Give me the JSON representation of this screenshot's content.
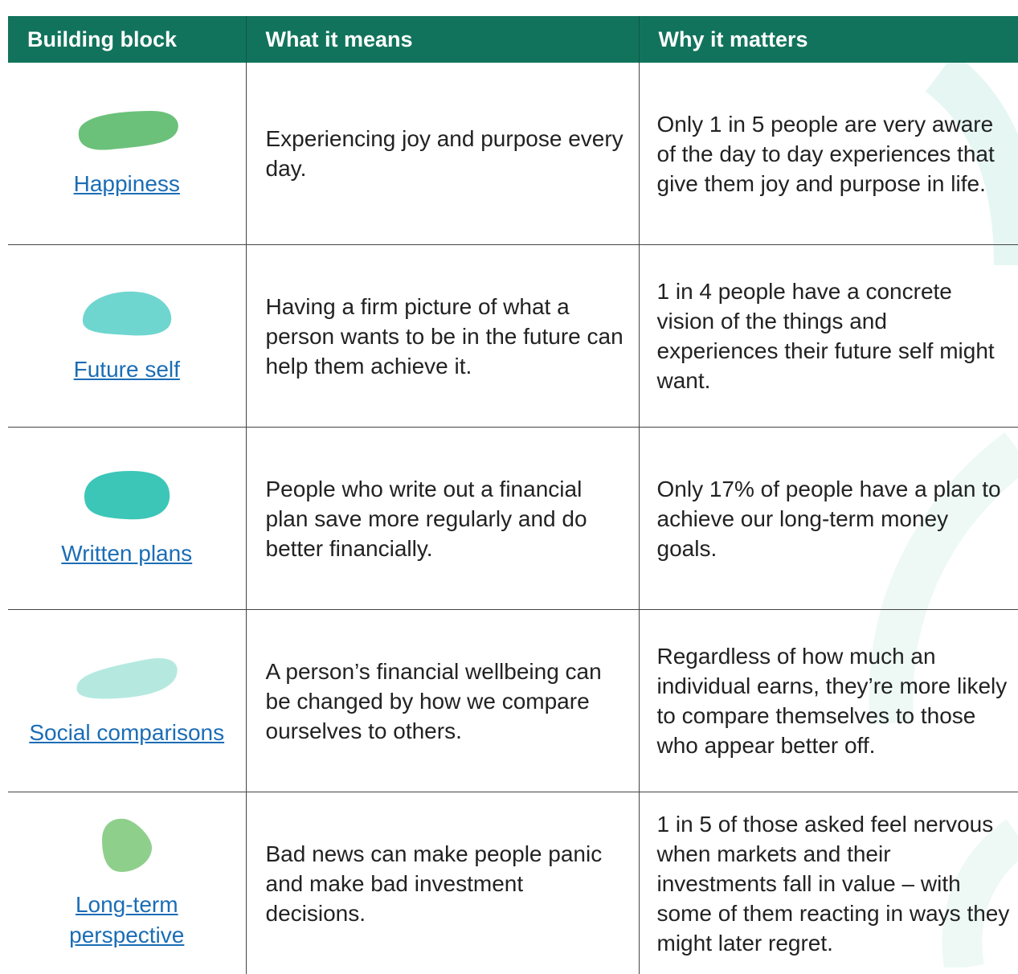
{
  "table": {
    "header": [
      "Building block",
      "What it means",
      "Why it matters"
    ],
    "rows": [
      [
        "Happiness",
        "Experiencing joy and purpose every day.",
        "Only 1 in 5 people are very aware of the day to day experiences that give them joy and purpose in life."
      ],
      [
        "Future self",
        "Having a firm picture of what a person wants to be in the future can help them achieve it.",
        "1 in 4 people have a concrete vision of the things and experiences their future self might want."
      ],
      [
        "Written plans",
        "People who write out a financial plan save more regularly and do better financially.",
        "Only 17% of people have a plan to achieve our long-term money goals."
      ],
      [
        "Social comparisons",
        "A person’s financial wellbeing can be changed by how we compare ourselves to others.",
        "Regardless of how much an individual earns, they’re more likely to compare themselves to those who appear better off."
      ],
      [
        "Long-term perspective",
        "Bad news can make people panic and make bad investment decisions.",
        "1 in 5 of those asked feel nervous when markets and their investments fall in value – with some of them reacting in ways they might later regret."
      ]
    ]
  }
}
